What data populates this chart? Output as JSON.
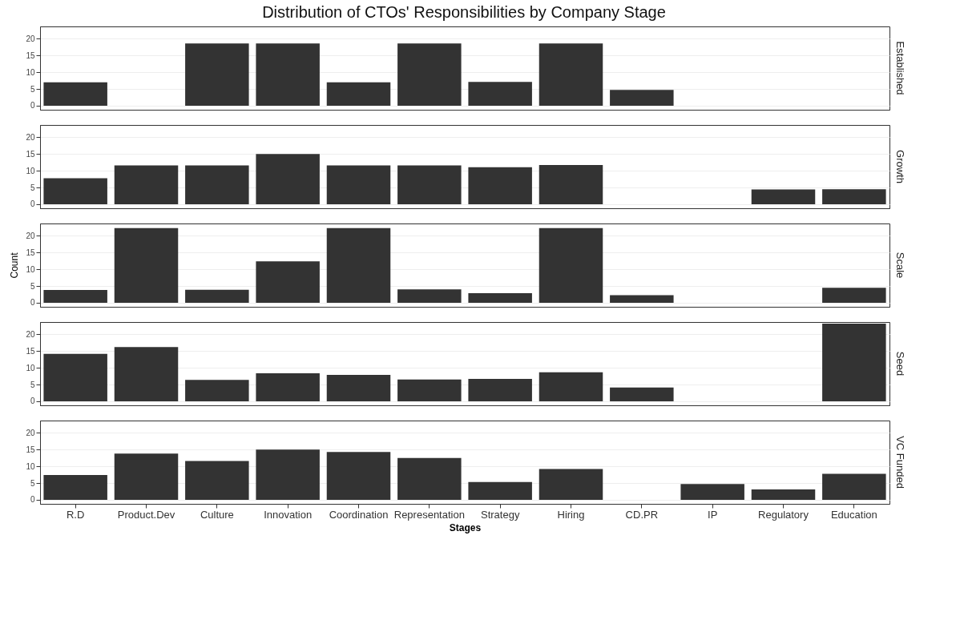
{
  "chart_data": [
    {
      "type": "bar",
      "title": "Distribution of CTOs' Responsibilities by Company Stage",
      "y2label": "Established",
      "categories": [
        null,
        null,
        null,
        null,
        null,
        null,
        null,
        null,
        null,
        null,
        null,
        null
      ],
      "color": "#333333",
      "values": [
        7.0,
        null,
        18.6,
        18.6,
        7.0,
        18.6,
        7.1,
        18.6,
        4.7,
        null,
        null,
        null
      ],
      "ylim": [
        -1.2,
        23.7
      ],
      "yticks": [
        0,
        5,
        10,
        15,
        20
      ],
      "grid": "y",
      "tick_labels": "y"
    },
    {
      "type": "bar",
      "y2label": "Growth",
      "categories": [
        null,
        null,
        null,
        null,
        null,
        null,
        null,
        null,
        null,
        null,
        null,
        null
      ],
      "color": "#333333",
      "values": [
        7.8,
        11.6,
        11.6,
        15.0,
        11.6,
        11.6,
        11.1,
        11.7,
        null,
        null,
        4.4,
        4.5
      ],
      "ylim": [
        -1.2,
        23.7
      ],
      "yticks": [
        0,
        5,
        10,
        15,
        20
      ],
      "grid": "y",
      "tick_labels": "y"
    },
    {
      "type": "bar",
      "y2label": "Scale",
      "ylabel": "Count",
      "categories": [
        null,
        null,
        null,
        null,
        null,
        null,
        null,
        null,
        null,
        null,
        null,
        null
      ],
      "color": "#333333",
      "values": [
        3.8,
        22.3,
        3.9,
        12.4,
        22.3,
        4.0,
        2.9,
        22.3,
        2.3,
        null,
        null,
        4.5
      ],
      "ylim": [
        -1.2,
        23.7
      ],
      "yticks": [
        0,
        5,
        10,
        15,
        20
      ],
      "grid": "y",
      "tick_labels": "y"
    },
    {
      "type": "bar",
      "y2label": "Seed",
      "categories": [
        null,
        null,
        null,
        null,
        null,
        null,
        null,
        null,
        null,
        null,
        null,
        null
      ],
      "color": "#333333",
      "values": [
        14.2,
        16.2,
        6.4,
        8.4,
        7.9,
        6.5,
        6.7,
        8.7,
        4.1,
        null,
        null,
        23.2
      ],
      "ylim": [
        -1.2,
        23.7
      ],
      "yticks": [
        0,
        5,
        10,
        15,
        20
      ],
      "grid": "y",
      "tick_labels": "y"
    },
    {
      "type": "bar",
      "y2label": "VC Funded",
      "xlabel": "Stages",
      "categories": [
        "R.D",
        "Product.Dev",
        "Culture",
        "Innovation",
        "Coordination",
        "Representation",
        "Strategy",
        "Hiring",
        "CD.PR",
        "IP",
        "Regulatory",
        "Education"
      ],
      "color": "#333333",
      "values": [
        7.4,
        13.8,
        11.6,
        15.0,
        14.3,
        12.5,
        5.3,
        9.2,
        null,
        4.7,
        3.1,
        7.8
      ],
      "ylim": [
        -1.2,
        23.7
      ],
      "yticks": [
        0,
        5,
        10,
        15,
        20
      ],
      "grid": "y"
    }
  ]
}
